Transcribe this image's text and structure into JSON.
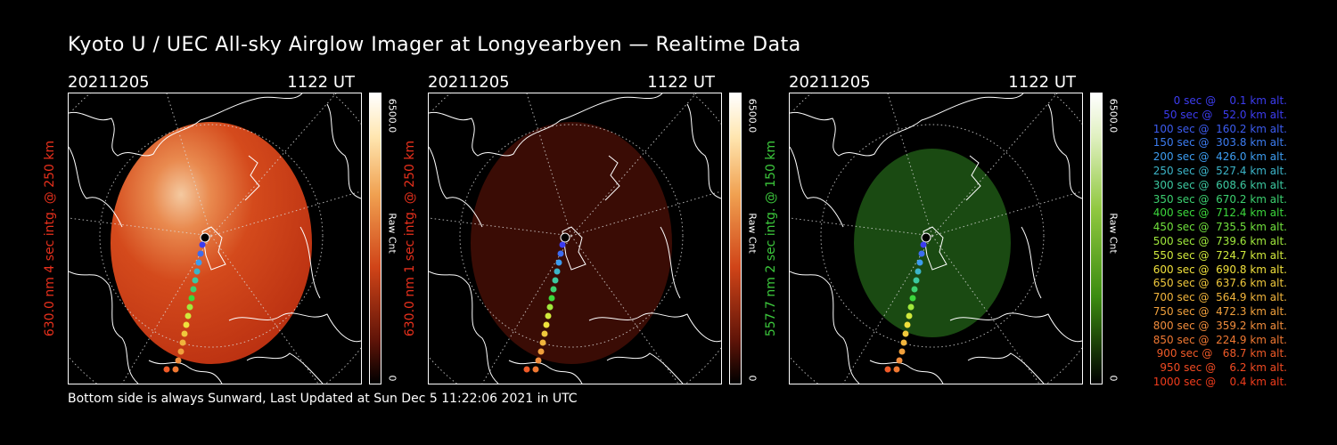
{
  "title": "Kyoto U / UEC All-sky Airglow Imager at Longyearbyen — Realtime Data",
  "footer": "Bottom side is always Sunward, Last Updated at Sun Dec  5 11:22:06 2021 in UTC",
  "panels": [
    {
      "date": "20211205",
      "time": "1122 UT",
      "ylabel": "630.0 nm 4 sec intg. @ 250 km",
      "label_color": "#e8301c",
      "max": "6500.0",
      "min": "0",
      "unit": "Raw Cnt",
      "image": "bright red airglow disc",
      "glow_color": "#c83212"
    },
    {
      "date": "20211205",
      "time": "1122 UT",
      "ylabel": "630.0 nm 1 sec intg. @ 250 km",
      "label_color": "#e8301c",
      "max": "6500.0",
      "min": "0",
      "unit": "Raw Cnt",
      "image": "dim red airglow disc",
      "glow_color": "#3c0a04"
    },
    {
      "date": "20211205",
      "time": "1122 UT",
      "ylabel": "557.7 nm 2 sec intg. @ 150 km",
      "label_color": "#3cc83c",
      "max": "6500.0",
      "min": "0",
      "unit": "Raw Cnt",
      "image": "green airglow disc",
      "glow_color": "#1a4a12"
    }
  ],
  "trajectory": [
    {
      "text": "   0 sec @    0.1 km alt.",
      "color": "#3c3cf0"
    },
    {
      "text": "  50 sec @   52.0 km alt.",
      "color": "#3c3cf0"
    },
    {
      "text": " 100 sec @  160.2 km alt.",
      "color": "#3c5cf0"
    },
    {
      "text": " 150 sec @  303.8 km alt.",
      "color": "#3c7cf0"
    },
    {
      "text": " 200 sec @  426.0 km alt.",
      "color": "#3c9cf0"
    },
    {
      "text": " 250 sec @  527.4 km alt.",
      "color": "#3cb4c8"
    },
    {
      "text": " 300 sec @  608.6 km alt.",
      "color": "#3cc8a0"
    },
    {
      "text": " 350 sec @  670.2 km alt.",
      "color": "#3cd070"
    },
    {
      "text": " 400 sec @  712.4 km alt.",
      "color": "#3cd83c"
    },
    {
      "text": " 450 sec @  735.5 km alt.",
      "color": "#70e03c"
    },
    {
      "text": " 500 sec @  739.6 km alt.",
      "color": "#a0e83c"
    },
    {
      "text": " 550 sec @  724.7 km alt.",
      "color": "#d0e83c"
    },
    {
      "text": " 600 sec @  690.8 km alt.",
      "color": "#f0e03c"
    },
    {
      "text": " 650 sec @  637.6 km alt.",
      "color": "#f0c83c"
    },
    {
      "text": " 700 sec @  564.9 km alt.",
      "color": "#f0b43c"
    },
    {
      "text": " 750 sec @  472.3 km alt.",
      "color": "#f0a03c"
    },
    {
      "text": " 800 sec @  359.2 km alt.",
      "color": "#f08c3c"
    },
    {
      "text": " 850 sec @  224.9 km alt.",
      "color": "#f07832"
    },
    {
      "text": " 900 sec @   68.7 km alt.",
      "color": "#f05a28"
    },
    {
      "text": " 950 sec @    6.2 km alt.",
      "color": "#f04a22"
    },
    {
      "text": "1000 sec @    0.4 km alt.",
      "color": "#f03c1c"
    }
  ]
}
